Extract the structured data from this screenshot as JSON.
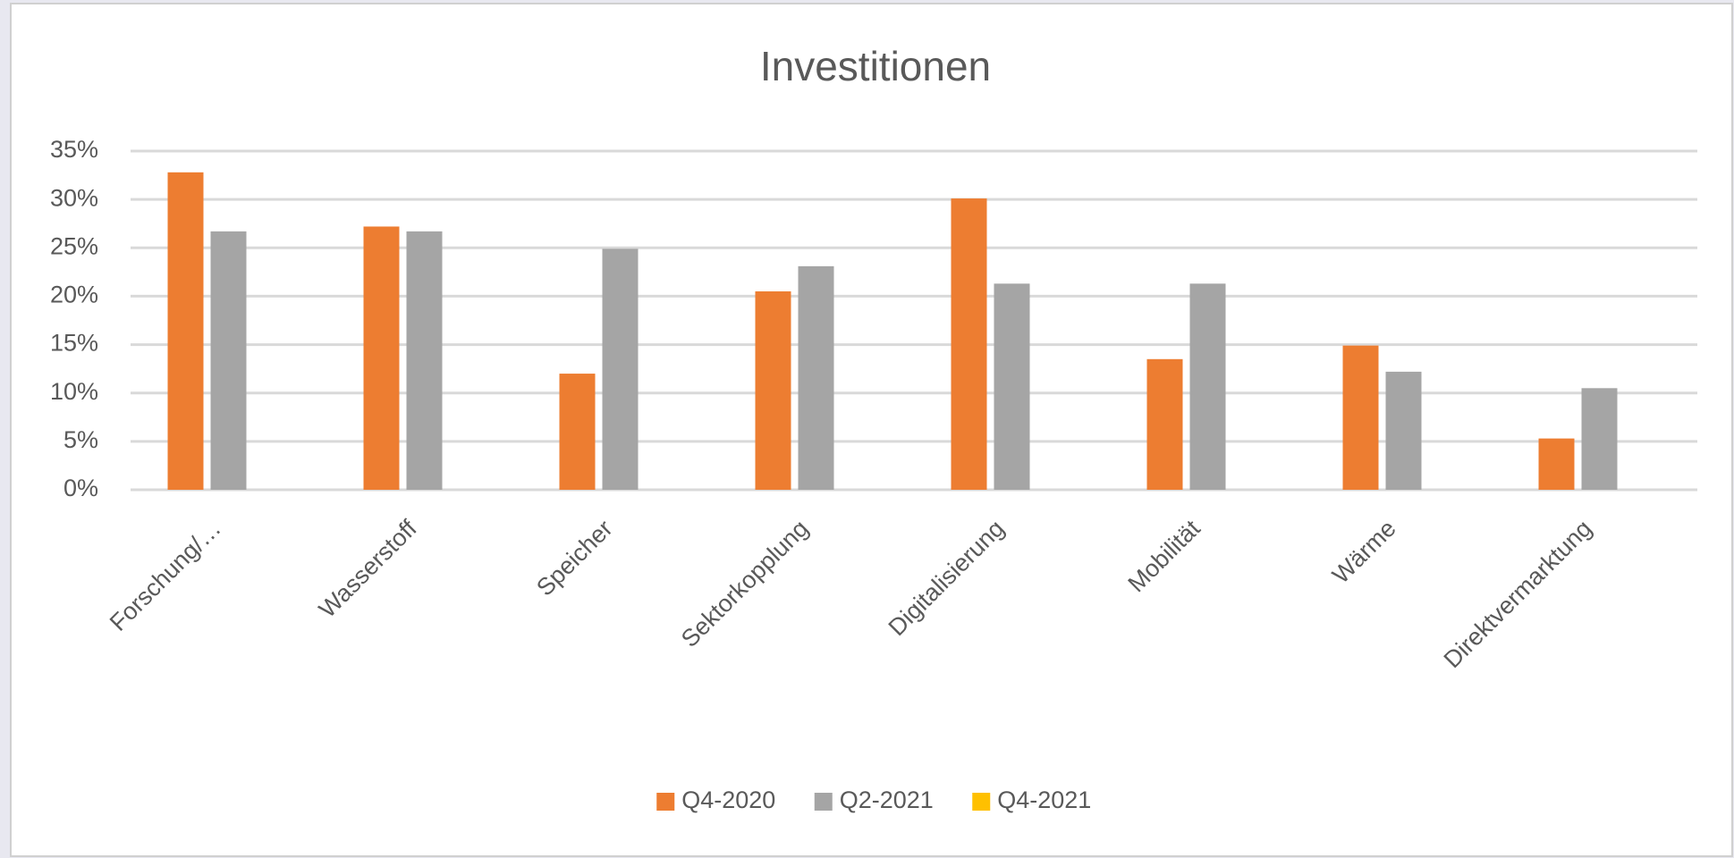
{
  "chart_data": {
    "type": "bar",
    "title": "Investitionen",
    "categories": [
      "Forschung/…",
      "Wasserstoff",
      "Speicher",
      "Sektorkopplung",
      "Digitalisierung",
      "Mobilität",
      "Wärme",
      "Direktvermarktung"
    ],
    "series": [
      {
        "name": "Q4-2020",
        "color": "#ed7d31",
        "values": [
          32.8,
          27.2,
          12.0,
          20.5,
          30.1,
          13.5,
          14.9,
          5.3
        ]
      },
      {
        "name": "Q2-2021",
        "color": "#a5a5a5",
        "values": [
          26.7,
          26.7,
          24.9,
          23.1,
          21.3,
          21.3,
          12.2,
          10.5
        ]
      },
      {
        "name": "Q4-2021",
        "color": "#ffc000",
        "values": [
          null,
          null,
          null,
          null,
          null,
          null,
          null,
          null
        ]
      }
    ],
    "ylim": [
      0,
      35
    ],
    "yticks": [
      {
        "value": 0,
        "label": "0%"
      },
      {
        "value": 5,
        "label": "5%"
      },
      {
        "value": 10,
        "label": "10%"
      },
      {
        "value": 15,
        "label": "15%"
      },
      {
        "value": 20,
        "label": "20%"
      },
      {
        "value": 25,
        "label": "25%"
      },
      {
        "value": 30,
        "label": "30%"
      },
      {
        "value": 35,
        "label": "35%"
      }
    ],
    "grid": true,
    "legend": "bottom"
  }
}
